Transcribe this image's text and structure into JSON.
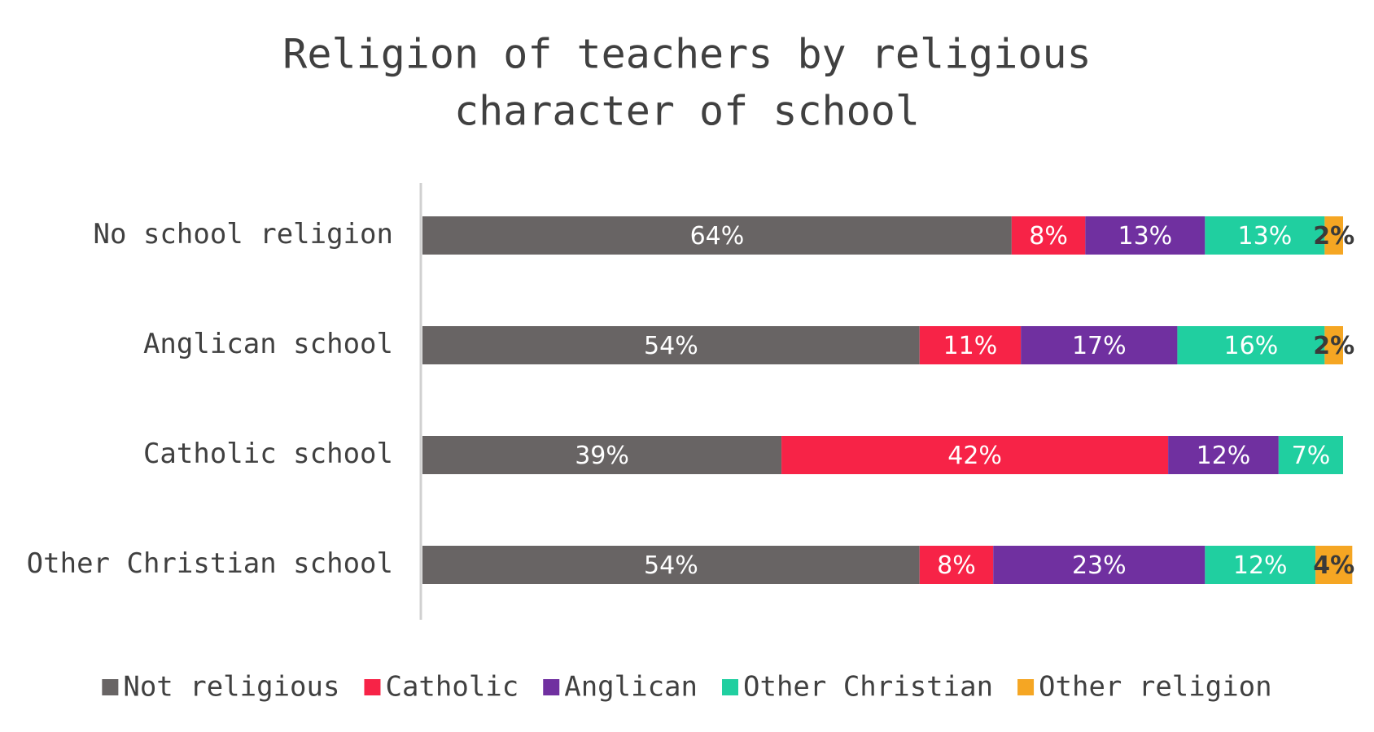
{
  "chart_data": {
    "type": "stacked-bar-horizontal",
    "title": "Religion of teachers by religious",
    "subtitle": "character of school",
    "categories": [
      "No school religion",
      "Anglican school",
      "Catholic school",
      "Other Christian school"
    ],
    "xlim": [
      0,
      100
    ],
    "legend": "bottom",
    "series": [
      {
        "name": "Not religious",
        "color": "#686464",
        "values": [
          64,
          54,
          39,
          54
        ],
        "value_labels": [
          "64%",
          "54%",
          "39%",
          "54%"
        ]
      },
      {
        "name": "Catholic",
        "color": "#f72347",
        "values": [
          8,
          11,
          42,
          8
        ],
        "value_labels": [
          "8%",
          "11%",
          "42%",
          "8%"
        ]
      },
      {
        "name": "Anglican",
        "color": "#7030a0",
        "values": [
          13,
          17,
          12,
          23
        ],
        "value_labels": [
          "13%",
          "17%",
          "12%",
          "23%"
        ]
      },
      {
        "name": "Other Christian",
        "color": "#20cfa0",
        "values": [
          13,
          16,
          7,
          12
        ],
        "value_labels": [
          "13%",
          "16%",
          "7%",
          "12%"
        ]
      },
      {
        "name": "Other religion",
        "color": "#f5a623",
        "values": [
          2,
          2,
          null,
          4
        ],
        "value_labels": [
          "2%",
          "2%",
          null,
          "4%"
        ]
      }
    ]
  }
}
